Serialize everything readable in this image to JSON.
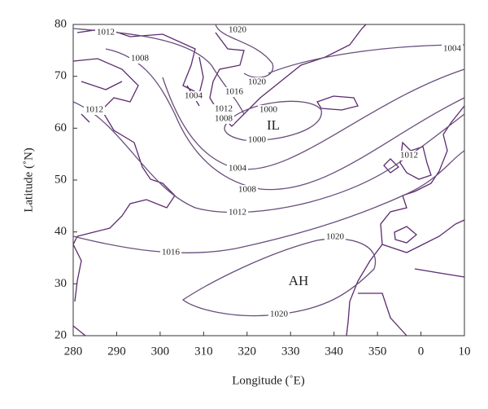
{
  "map": {
    "x_axis": {
      "label": "Longitude (˚E)",
      "ticks": [
        "280",
        "290",
        "300",
        "310",
        "320",
        "330",
        "340",
        "350",
        "0",
        "10"
      ]
    },
    "y_axis": {
      "label": "Latitude (˚N)",
      "ticks": [
        "80",
        "70",
        "60",
        "50",
        "40",
        "30",
        "20"
      ]
    },
    "contour_labels": [
      "1012",
      "1020",
      "1008",
      "1004",
      "1016",
      "1020",
      "1004",
      "1012",
      "1012",
      "1008",
      "1000",
      "1000",
      "1004",
      "1008",
      "1012",
      "1016",
      "1020",
      "1020",
      "1012"
    ],
    "regions": [
      "IL",
      "AH"
    ]
  }
}
